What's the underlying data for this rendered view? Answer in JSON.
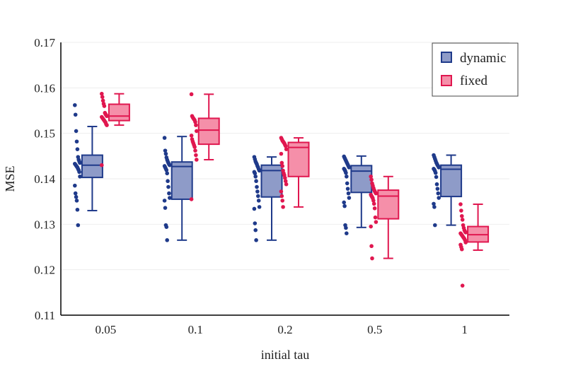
{
  "chart_data": {
    "type": "box",
    "title": "",
    "xlabel": "initial tau",
    "ylabel": "MSE",
    "ylim": [
      0.11,
      0.17
    ],
    "yticks": [
      "0.11",
      "0.12",
      "0.13",
      "0.14",
      "0.15",
      "0.16",
      "0.17"
    ],
    "categories": [
      "0.05",
      "0.1",
      "0.2",
      "0.5",
      "1"
    ],
    "legend_position": "top-right",
    "series": [
      {
        "name": "dynamic",
        "fill": "#8e9bc8",
        "stroke": "#1f3a8a",
        "boxes": [
          {
            "min": 0.133,
            "q1": 0.1403,
            "median": 0.143,
            "q3": 0.1452,
            "max": 0.1515,
            "points": [
              0.1562,
              0.1541,
              0.1505,
              0.1482,
              0.1465,
              0.1448,
              0.1442,
              0.1438,
              0.1435,
              0.1433,
              0.1431,
              0.1429,
              0.1427,
              0.1425,
              0.1422,
              0.1419,
              0.1415,
              0.1405,
              0.1385,
              0.1368,
              0.136,
              0.1352,
              0.1332,
              0.1298
            ]
          },
          {
            "min": 0.1265,
            "q1": 0.1355,
            "median": 0.1427,
            "q3": 0.1437,
            "max": 0.1493,
            "points": [
              0.149,
              0.1462,
              0.1455,
              0.1447,
              0.1442,
              0.1438,
              0.1435,
              0.1432,
              0.143,
              0.1428,
              0.1425,
              0.1422,
              0.1419,
              0.1412,
              0.1395,
              0.1382,
              0.1368,
              0.1358,
              0.1352,
              0.1336,
              0.1298,
              0.1294,
              0.1265
            ]
          },
          {
            "min": 0.1265,
            "q1": 0.136,
            "median": 0.1418,
            "q3": 0.143,
            "max": 0.1448,
            "points": [
              0.1448,
              0.1443,
              0.1438,
              0.1435,
              0.1432,
              0.1428,
              0.1425,
              0.1421,
              0.1418,
              0.1415,
              0.1412,
              0.1405,
              0.1395,
              0.1382,
              0.1372,
              0.1362,
              0.1352,
              0.1338,
              0.1334,
              0.1302,
              0.1287,
              0.1265
            ]
          },
          {
            "min": 0.1293,
            "q1": 0.137,
            "median": 0.1417,
            "q3": 0.1429,
            "max": 0.145,
            "points": [
              0.1449,
              0.1446,
              0.1443,
              0.144,
              0.1437,
              0.1434,
              0.1431,
              0.1428,
              0.1425,
              0.1422,
              0.142,
              0.1417,
              0.1413,
              0.1405,
              0.139,
              0.1378,
              0.1368,
              0.1358,
              0.1348,
              0.134,
              0.1298,
              0.1292,
              0.128
            ]
          },
          {
            "min": 0.1298,
            "q1": 0.1361,
            "median": 0.1421,
            "q3": 0.143,
            "max": 0.1452,
            "points": [
              0.1452,
              0.1448,
              0.1444,
              0.144,
              0.1436,
              0.1433,
              0.143,
              0.1428,
              0.1425,
              0.1422,
              0.142,
              0.1417,
              0.1413,
              0.1404,
              0.1388,
              0.1378,
              0.1368,
              0.1358,
              0.1345,
              0.1338,
              0.1298
            ]
          }
        ]
      },
      {
        "name": "fixed",
        "fill": "#f58fa9",
        "stroke": "#e0174f",
        "boxes": [
          {
            "min": 0.1518,
            "q1": 0.1528,
            "median": 0.1538,
            "q3": 0.1564,
            "max": 0.1587,
            "points": [
              0.1587,
              0.158,
              0.1572,
              0.1565,
              0.156,
              0.1545,
              0.1542,
              0.154,
              0.1538,
              0.1536,
              0.1534,
              0.1532,
              0.153,
              0.1528,
              0.1526,
              0.1524,
              0.152,
              0.1518,
              0.143
            ]
          },
          {
            "min": 0.1442,
            "q1": 0.1476,
            "median": 0.1507,
            "q3": 0.1533,
            "max": 0.1586,
            "points": [
              0.1586,
              0.1538,
              0.1535,
              0.1533,
              0.1531,
              0.1529,
              0.1525,
              0.1518,
              0.1505,
              0.1495,
              0.1487,
              0.1482,
              0.1478,
              0.1474,
              0.147,
              0.1462,
              0.1452,
              0.1442,
              0.1355
            ]
          },
          {
            "min": 0.1338,
            "q1": 0.1405,
            "median": 0.1469,
            "q3": 0.148,
            "max": 0.149,
            "points": [
              0.149,
              0.1487,
              0.1484,
              0.1482,
              0.148,
              0.1478,
              0.1475,
              0.1472,
              0.1465,
              0.1455,
              0.1435,
              0.1428,
              0.1418,
              0.1412,
              0.1408,
              0.1402,
              0.1395,
              0.1388,
              0.1372,
              0.1362,
              0.1352,
              0.1338
            ]
          },
          {
            "min": 0.1225,
            "q1": 0.1312,
            "median": 0.1362,
            "q3": 0.1375,
            "max": 0.1405,
            "points": [
              0.1405,
              0.1398,
              0.139,
              0.1385,
              0.138,
              0.1376,
              0.1373,
              0.137,
              0.1368,
              0.1365,
              0.1362,
              0.136,
              0.1357,
              0.1352,
              0.1345,
              0.1335,
              0.1315,
              0.1305,
              0.1295,
              0.1252,
              0.1225
            ]
          },
          {
            "min": 0.1243,
            "q1": 0.1261,
            "median": 0.1277,
            "q3": 0.1295,
            "max": 0.1344,
            "points": [
              0.1344,
              0.133,
              0.1318,
              0.131,
              0.1298,
              0.1292,
              0.1287,
              0.1284,
              0.1282,
              0.128,
              0.1278,
              0.1276,
              0.1274,
              0.1272,
              0.127,
              0.1268,
              0.1265,
              0.126,
              0.1255,
              0.125,
              0.1245,
              0.1165
            ]
          }
        ]
      }
    ]
  }
}
